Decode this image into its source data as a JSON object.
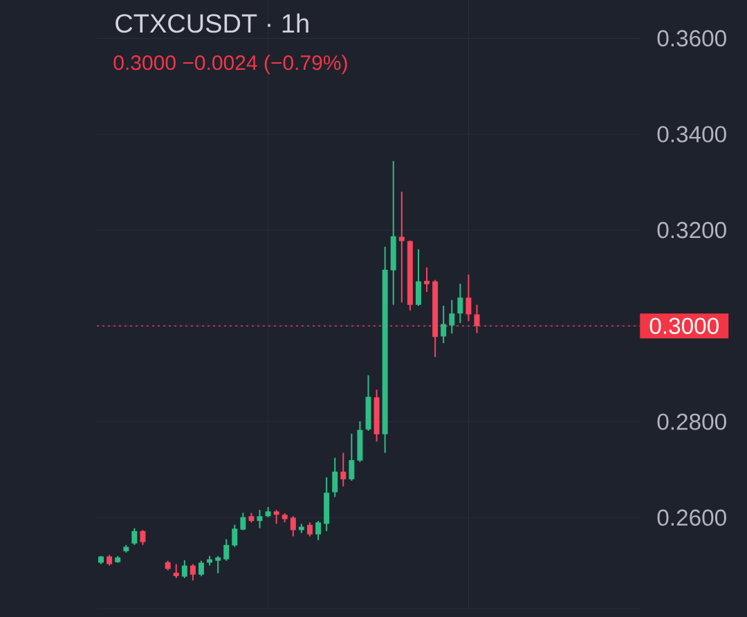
{
  "chart_data": {
    "type": "candlestick",
    "title": "CTXCUSDT · 1h",
    "subtitle": "0.3000 −0.0024 (−0.79%)",
    "categories": [
      null,
      null,
      null,
      null,
      null,
      null,
      null,
      null,
      null,
      null,
      null,
      null,
      null,
      null,
      null,
      null,
      null,
      null,
      null,
      null,
      null,
      null,
      null,
      null,
      null,
      null,
      null,
      null,
      null,
      null,
      null,
      null,
      null,
      null,
      null,
      null,
      null,
      null,
      null,
      null,
      null,
      null,
      null,
      null,
      null,
      null,
      null,
      null,
      null,
      null,
      null,
      null,
      null,
      null,
      null,
      null,
      null,
      null,
      null,
      null,
      null,
      null,
      null,
      null,
      null
    ],
    "ohlc": [
      [
        0.2506,
        0.252,
        0.2503,
        0.2519
      ],
      [
        0.2519,
        0.2522,
        0.25,
        0.2503
      ],
      [
        0.2507,
        0.252,
        0.2506,
        0.2517
      ],
      [
        0.253,
        0.2543,
        0.2527,
        0.2539
      ],
      [
        0.2546,
        0.2578,
        0.2543,
        0.2572
      ],
      [
        0.2572,
        0.2574,
        0.2543,
        0.2549
      ],
      null,
      null,
      [
        0.2507,
        0.251,
        0.249,
        0.2493
      ],
      [
        0.2485,
        0.2503,
        0.2474,
        0.2478
      ],
      [
        0.2477,
        0.2511,
        0.2474,
        0.25
      ],
      [
        0.25,
        0.2503,
        0.2469,
        0.2481
      ],
      [
        0.2481,
        0.251,
        0.2478,
        0.2506
      ],
      [
        0.2506,
        0.252,
        0.25,
        0.2513
      ],
      [
        0.251,
        0.252,
        0.2484,
        0.2517
      ],
      [
        0.2513,
        0.2555,
        0.251,
        0.2543
      ],
      [
        0.2542,
        0.2585,
        0.2539,
        0.2577
      ],
      [
        0.2575,
        0.261,
        0.2574,
        0.2601
      ],
      [
        0.2603,
        0.261,
        0.259,
        0.2593
      ],
      [
        0.2593,
        0.2616,
        0.2578,
        0.2603
      ],
      [
        0.2603,
        0.2622,
        0.2601,
        0.2613
      ],
      [
        0.2613,
        0.2616,
        0.2587,
        0.2606
      ],
      [
        0.2606,
        0.2609,
        0.259,
        0.2597
      ],
      [
        0.26,
        0.2603,
        0.2561,
        0.2574
      ],
      [
        0.2574,
        0.2587,
        0.2568,
        0.2581
      ],
      [
        0.2585,
        0.259,
        0.2561,
        0.2565
      ],
      [
        0.2565,
        0.2593,
        0.2553,
        0.259
      ],
      [
        0.2587,
        0.2684,
        0.2572,
        0.2652
      ],
      [
        0.2653,
        0.2725,
        0.2643,
        0.2696
      ],
      [
        0.2696,
        0.2735,
        0.2665,
        0.268
      ],
      [
        0.268,
        0.2775,
        0.2677,
        0.272
      ],
      [
        0.2719,
        0.2801,
        0.2716,
        0.2783
      ],
      [
        0.2784,
        0.2897,
        0.2781,
        0.2852
      ],
      [
        0.2851,
        0.2867,
        0.2759,
        0.2774
      ],
      [
        0.2774,
        0.3165,
        0.2735,
        0.3117
      ],
      [
        0.3116,
        0.3344,
        0.3044,
        0.3187
      ],
      [
        0.3186,
        0.328,
        0.3049,
        0.3177
      ],
      [
        0.3177,
        0.3178,
        0.3032,
        0.3044
      ],
      [
        0.3044,
        0.316,
        0.3042,
        0.3093
      ],
      [
        0.3094,
        0.3122,
        0.3071,
        0.3087
      ],
      [
        0.3093,
        0.3096,
        0.2935,
        0.2977
      ],
      [
        0.2978,
        0.3042,
        0.2964,
        0.3004
      ],
      [
        0.3001,
        0.3054,
        0.2984,
        0.3026
      ],
      [
        0.3026,
        0.3088,
        0.3006,
        0.3059
      ],
      [
        0.3059,
        0.3107,
        0.301,
        0.3024
      ],
      [
        0.3024,
        0.3044,
        0.2985,
        0.3
      ],
      null,
      null,
      null,
      null,
      null,
      null,
      null,
      null,
      null,
      null,
      null,
      null,
      null,
      null,
      null,
      null,
      null,
      null,
      null
    ],
    "colors": [
      "#2ebd85",
      "#f6465d",
      "#2ebd85",
      "#2ebd85",
      "#2ebd85",
      "#f6465d",
      null,
      null,
      "#f6465d",
      "#f6465d",
      "#2ebd85",
      "#f6465d",
      "#2ebd85",
      "#2ebd85",
      "#2ebd85",
      "#2ebd85",
      "#2ebd85",
      "#2ebd85",
      "#f6465d",
      "#2ebd85",
      "#2ebd85",
      "#f6465d",
      "#f6465d",
      "#f6465d",
      "#2ebd85",
      "#f6465d",
      "#2ebd85",
      "#2ebd85",
      "#2ebd85",
      "#f6465d",
      "#2ebd85",
      "#2ebd85",
      "#2ebd85",
      "#f6465d",
      "#2ebd85",
      "#2ebd85",
      "#f6465d",
      "#f6465d",
      "#2ebd85",
      "#f6465d",
      "#f6465d",
      "#2ebd85",
      "#2ebd85",
      "#2ebd85",
      "#f6465d",
      "#f6465d",
      null,
      null,
      null,
      null,
      null,
      null,
      null,
      null,
      null,
      null,
      null,
      null,
      null,
      null,
      null,
      null,
      null,
      null,
      null
    ],
    "ylim": [
      0.241,
      0.368
    ],
    "yticks": [
      {
        "value": 0.26,
        "label": "0.2600"
      },
      {
        "value": 0.28,
        "label": "0.2800"
      },
      {
        "value": 0.3,
        "label": null
      },
      {
        "value": 0.32,
        "label": "0.3200"
      },
      {
        "value": 0.34,
        "label": "0.3400"
      },
      {
        "value": 0.36,
        "label": "0.3600"
      }
    ],
    "tick_labels": "y",
    "grid": true,
    "ref_lines": [
      {
        "axis": "y",
        "value": 0.3,
        "label": "0.3000",
        "color": "#f23645",
        "line_style": "dotted"
      }
    ]
  }
}
